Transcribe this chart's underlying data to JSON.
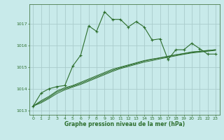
{
  "bg_color": "#c8eaea",
  "grid_color": "#aacccc",
  "line_color": "#2d6e2d",
  "xlabel": "Graphe pression niveau de la mer (hPa)",
  "ylim": [
    1012.8,
    1017.9
  ],
  "xlim": [
    -0.5,
    23.5
  ],
  "yticks": [
    1013,
    1014,
    1015,
    1016,
    1017
  ],
  "xticks": [
    0,
    1,
    2,
    3,
    4,
    5,
    6,
    7,
    8,
    9,
    10,
    11,
    12,
    13,
    14,
    15,
    16,
    17,
    18,
    19,
    20,
    21,
    22,
    23
  ],
  "series1_x": [
    0,
    1,
    2,
    3,
    4,
    5,
    6,
    7,
    8,
    9,
    10,
    11,
    12,
    13,
    14,
    15,
    16,
    17,
    18,
    19,
    20,
    21,
    22,
    23
  ],
  "series1_y": [
    1013.2,
    1013.8,
    1014.0,
    1014.1,
    1014.15,
    1015.05,
    1015.55,
    1016.9,
    1016.65,
    1017.55,
    1017.2,
    1017.2,
    1016.85,
    1017.1,
    1016.85,
    1016.25,
    1016.3,
    1015.35,
    1015.8,
    1015.8,
    1016.1,
    1015.85,
    1015.6,
    1015.6
  ],
  "series2_x": [
    0,
    1,
    2,
    3,
    4,
    5,
    6,
    7,
    8,
    9,
    10,
    11,
    12,
    13,
    14,
    15,
    16,
    17,
    18,
    19,
    20,
    21,
    22,
    23
  ],
  "series2_y": [
    1013.2,
    1013.45,
    1013.65,
    1013.9,
    1014.05,
    1014.15,
    1014.3,
    1014.45,
    1014.6,
    1014.75,
    1014.9,
    1015.0,
    1015.1,
    1015.2,
    1015.3,
    1015.37,
    1015.43,
    1015.5,
    1015.57,
    1015.63,
    1015.7,
    1015.73,
    1015.77,
    1015.8
  ],
  "series3_x": [
    0,
    1,
    2,
    3,
    4,
    5,
    6,
    7,
    8,
    9,
    10,
    11,
    12,
    13,
    14,
    15,
    16,
    17,
    18,
    19,
    20,
    21,
    22,
    23
  ],
  "series3_y": [
    1013.2,
    1013.4,
    1013.6,
    1013.85,
    1014.0,
    1014.12,
    1014.25,
    1014.4,
    1014.55,
    1014.7,
    1014.85,
    1014.97,
    1015.07,
    1015.17,
    1015.28,
    1015.35,
    1015.42,
    1015.49,
    1015.56,
    1015.62,
    1015.68,
    1015.72,
    1015.76,
    1015.8
  ],
  "series4_x": [
    0,
    1,
    2,
    3,
    4,
    5,
    6,
    7,
    8,
    9,
    10,
    11,
    12,
    13,
    14,
    15,
    16,
    17,
    18,
    19,
    20,
    21,
    22,
    23
  ],
  "series4_y": [
    1013.2,
    1013.35,
    1013.55,
    1013.78,
    1013.95,
    1014.08,
    1014.2,
    1014.35,
    1014.5,
    1014.65,
    1014.8,
    1014.93,
    1015.03,
    1015.13,
    1015.23,
    1015.3,
    1015.38,
    1015.45,
    1015.52,
    1015.59,
    1015.65,
    1015.69,
    1015.73,
    1015.77
  ]
}
